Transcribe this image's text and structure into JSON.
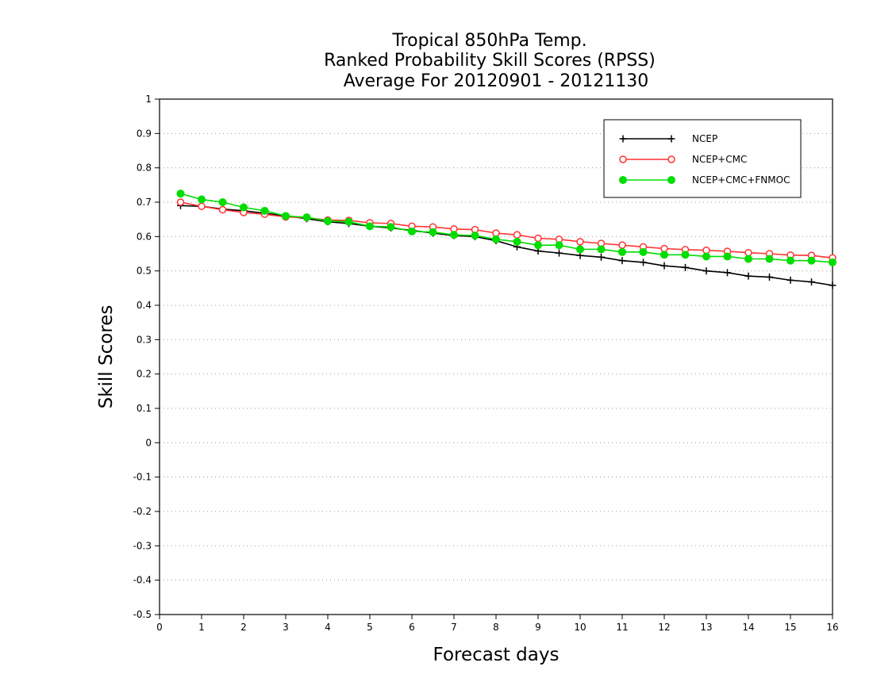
{
  "chart_data": {
    "type": "line",
    "title_lines": [
      "Tropical 850hPa Temp.",
      "Ranked Probability Skill Scores (RPSS)",
      "Average For 20120901 - 20121130"
    ],
    "xlabel": "Forecast days",
    "ylabel": "Skill Scores",
    "xlim": [
      0,
      16
    ],
    "ylim": [
      -0.5,
      1
    ],
    "x_ticks": [
      "0",
      "1",
      "2",
      "3",
      "4",
      "5",
      "6",
      "7",
      "8",
      "9",
      "10",
      "11",
      "12",
      "13",
      "14",
      "15",
      "16"
    ],
    "y_ticks": [
      "1",
      "0.9",
      "0.8",
      "0.7",
      "0.6",
      "0.5",
      "0.4",
      "0.3",
      "0.2",
      "0.1",
      "0",
      "-0.1",
      "-0.2",
      "-0.3",
      "-0.4",
      "-0.5"
    ],
    "grid": "horizontal dotted",
    "legend_position": "top-right",
    "x": [
      0.5,
      1,
      1.5,
      2,
      2.5,
      3,
      3.5,
      4,
      4.5,
      5,
      5.5,
      6,
      6.5,
      7,
      7.5,
      8,
      8.5,
      9,
      9.5,
      10,
      10.5,
      11,
      11.5,
      12,
      12.5,
      13,
      13.5,
      14,
      14.5,
      15,
      15.5,
      16
    ],
    "series": [
      {
        "name": "NCEP",
        "color": "#000000",
        "marker": "plus",
        "values": [
          0.69,
          0.688,
          0.68,
          0.675,
          0.668,
          0.66,
          0.652,
          0.643,
          0.638,
          0.63,
          0.625,
          0.618,
          0.61,
          0.603,
          0.6,
          0.588,
          0.57,
          0.558,
          0.552,
          0.545,
          0.54,
          0.53,
          0.525,
          0.515,
          0.51,
          0.5,
          0.495,
          0.485,
          0.482,
          0.473,
          0.468,
          0.458
        ]
      },
      {
        "name": "NCEP+CMC",
        "color": "#ff3333",
        "marker": "open-circle",
        "values": [
          0.7,
          0.688,
          0.678,
          0.67,
          0.665,
          0.657,
          0.655,
          0.648,
          0.647,
          0.64,
          0.638,
          0.63,
          0.628,
          0.622,
          0.62,
          0.61,
          0.605,
          0.595,
          0.592,
          0.585,
          0.58,
          0.575,
          0.57,
          0.565,
          0.562,
          0.56,
          0.557,
          0.553,
          0.55,
          0.546,
          0.545,
          0.538
        ]
      },
      {
        "name": "NCEP+CMC+FNMOC",
        "color": "#00dd00",
        "marker": "filled-circle",
        "values": [
          0.725,
          0.708,
          0.7,
          0.685,
          0.675,
          0.66,
          0.656,
          0.645,
          0.643,
          0.63,
          0.628,
          0.615,
          0.613,
          0.605,
          0.603,
          0.592,
          0.585,
          0.575,
          0.575,
          0.563,
          0.563,
          0.555,
          0.555,
          0.547,
          0.547,
          0.542,
          0.542,
          0.535,
          0.535,
          0.53,
          0.53,
          0.525
        ]
      }
    ]
  }
}
